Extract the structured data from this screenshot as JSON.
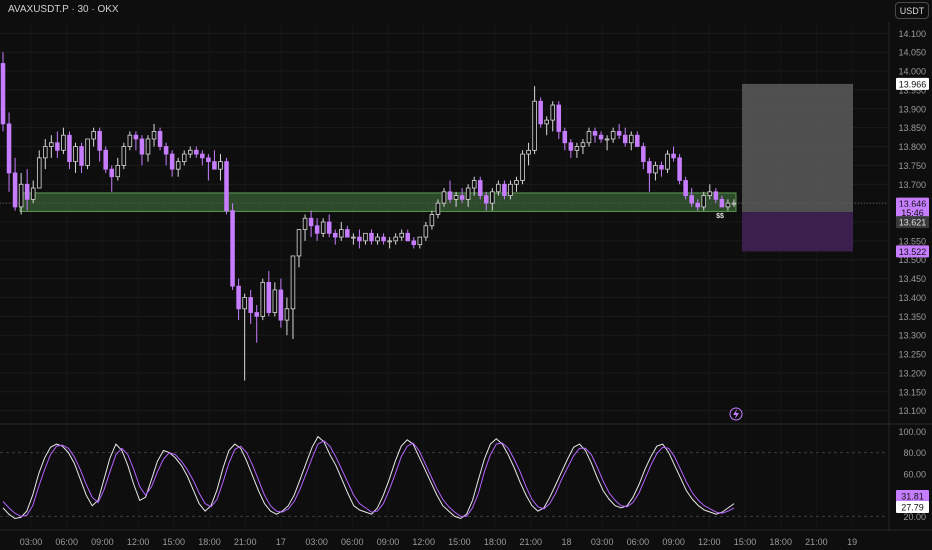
{
  "header": {
    "title": "AVAXUSDT.P · 30 · OKX",
    "currency_button": "USDT"
  },
  "colors": {
    "bull": "#0e0e0e",
    "bear": "#c77dff",
    "zone": "#2d4b2a",
    "zone_edge": "#5e9a52",
    "target": "#5a5a5a",
    "stop": "#3b1f4d",
    "stoch_k": "#e8e8e8",
    "stoch_d": "#b561ff"
  },
  "chart_data": [
    {
      "type": "candlestick",
      "title": "AVAXUSDT.P · 30 · OKX",
      "ylim": [
        13.07,
        14.13
      ],
      "y_ticks": [
        "14.100",
        "14.050",
        "14.000",
        "13.950",
        "13.900",
        "13.850",
        "13.800",
        "13.750",
        "13.700",
        "13.650",
        "13.600",
        "13.550",
        "13.500",
        "13.450",
        "13.400",
        "13.350",
        "13.300",
        "13.250",
        "13.200",
        "13.150",
        "13.100"
      ],
      "x_ticks": [
        "03:00",
        "06:00",
        "09:00",
        "12:00",
        "15:00",
        "18:00",
        "21:00",
        "17",
        "03:00",
        "06:00",
        "09:00",
        "12:00",
        "15:00",
        "18:00",
        "21:00",
        "18",
        "03:00",
        "06:00",
        "09:00",
        "12:00",
        "15:00",
        "18:00",
        "21:00",
        "19"
      ],
      "price_labels": [
        {
          "value": "13.966",
          "style": "white"
        },
        {
          "value": "13.646",
          "style": "purple"
        },
        {
          "value": "15:46",
          "style": "purple"
        },
        {
          "value": "13.621",
          "style": "gray"
        },
        {
          "value": "13.522",
          "style": "purple"
        }
      ],
      "annotations": [
        "$$"
      ],
      "demand_zone": {
        "low": 13.628,
        "high": 13.677
      },
      "position": {
        "entry": 13.626,
        "target": 13.966,
        "stop": 13.522
      },
      "candles": [
        [
          14.02,
          14.05,
          13.84,
          13.86
        ],
        [
          13.86,
          13.89,
          13.68,
          13.73
        ],
        [
          13.73,
          13.77,
          13.63,
          13.64
        ],
        [
          13.64,
          13.73,
          13.62,
          13.7
        ],
        [
          13.7,
          13.74,
          13.63,
          13.66
        ],
        [
          13.66,
          13.71,
          13.65,
          13.69
        ],
        [
          13.69,
          13.79,
          13.69,
          13.77
        ],
        [
          13.77,
          13.82,
          13.74,
          13.8
        ],
        [
          13.8,
          13.83,
          13.77,
          13.81
        ],
        [
          13.81,
          13.84,
          13.77,
          13.79
        ],
        [
          13.79,
          13.85,
          13.78,
          13.83
        ],
        [
          13.83,
          13.84,
          13.74,
          13.76
        ],
        [
          13.76,
          13.81,
          13.73,
          13.8
        ],
        [
          13.8,
          13.81,
          13.73,
          13.75
        ],
        [
          13.75,
          13.82,
          13.74,
          13.82
        ],
        [
          13.82,
          13.85,
          13.8,
          13.84
        ],
        [
          13.84,
          13.85,
          13.76,
          13.79
        ],
        [
          13.79,
          13.8,
          13.73,
          13.74
        ],
        [
          13.74,
          13.75,
          13.68,
          13.72
        ],
        [
          13.72,
          13.77,
          13.71,
          13.75
        ],
        [
          13.75,
          13.81,
          13.74,
          13.8
        ],
        [
          13.8,
          13.84,
          13.79,
          13.83
        ],
        [
          13.83,
          13.84,
          13.79,
          13.82
        ],
        [
          13.82,
          13.83,
          13.75,
          13.78
        ],
        [
          13.78,
          13.83,
          13.76,
          13.82
        ],
        [
          13.82,
          13.86,
          13.8,
          13.84
        ],
        [
          13.84,
          13.85,
          13.79,
          13.8
        ],
        [
          13.8,
          13.81,
          13.75,
          13.78
        ],
        [
          13.78,
          13.79,
          13.72,
          13.74
        ],
        [
          13.74,
          13.77,
          13.72,
          13.76
        ],
        [
          13.76,
          13.79,
          13.75,
          13.78
        ],
        [
          13.78,
          13.8,
          13.77,
          13.79
        ],
        [
          13.79,
          13.8,
          13.77,
          13.78
        ],
        [
          13.78,
          13.79,
          13.75,
          13.77
        ],
        [
          13.77,
          13.78,
          13.71,
          13.76
        ],
        [
          13.76,
          13.79,
          13.74,
          13.74
        ],
        [
          13.74,
          13.78,
          13.71,
          13.76
        ],
        [
          13.76,
          13.77,
          13.62,
          13.63
        ],
        [
          13.63,
          13.65,
          13.42,
          13.43
        ],
        [
          13.43,
          13.45,
          13.34,
          13.37
        ],
        [
          13.37,
          13.41,
          13.18,
          13.4
        ],
        [
          13.4,
          13.42,
          13.33,
          13.36
        ],
        [
          13.36,
          13.38,
          13.28,
          13.35
        ],
        [
          13.35,
          13.45,
          13.34,
          13.44
        ],
        [
          13.44,
          13.47,
          13.35,
          13.36
        ],
        [
          13.36,
          13.44,
          13.35,
          13.42
        ],
        [
          13.42,
          13.45,
          13.32,
          13.34
        ],
        [
          13.34,
          13.4,
          13.3,
          13.37
        ],
        [
          13.37,
          13.51,
          13.29,
          13.51
        ],
        [
          13.51,
          13.58,
          13.48,
          13.58
        ],
        [
          13.58,
          13.62,
          13.55,
          13.61
        ],
        [
          13.61,
          13.63,
          13.56,
          13.59
        ],
        [
          13.59,
          13.61,
          13.55,
          13.57
        ],
        [
          13.57,
          13.61,
          13.56,
          13.6
        ],
        [
          13.6,
          13.62,
          13.56,
          13.57
        ],
        [
          13.57,
          13.58,
          13.54,
          13.56
        ],
        [
          13.56,
          13.6,
          13.55,
          13.58
        ],
        [
          13.58,
          13.59,
          13.56,
          13.56
        ],
        [
          13.56,
          13.57,
          13.54,
          13.56
        ],
        [
          13.56,
          13.58,
          13.53,
          13.55
        ],
        [
          13.55,
          13.57,
          13.54,
          13.57
        ],
        [
          13.57,
          13.58,
          13.54,
          13.55
        ],
        [
          13.55,
          13.57,
          13.54,
          13.56
        ],
        [
          13.56,
          13.57,
          13.54,
          13.55
        ],
        [
          13.55,
          13.56,
          13.53,
          13.55
        ],
        [
          13.55,
          13.57,
          13.54,
          13.56
        ],
        [
          13.56,
          13.58,
          13.55,
          13.57
        ],
        [
          13.57,
          13.58,
          13.55,
          13.55
        ],
        [
          13.55,
          13.56,
          13.53,
          13.54
        ],
        [
          13.54,
          13.56,
          13.53,
          13.56
        ],
        [
          13.56,
          13.6,
          13.55,
          13.59
        ],
        [
          13.59,
          13.63,
          13.58,
          13.62
        ],
        [
          13.62,
          13.66,
          13.61,
          13.65
        ],
        [
          13.65,
          13.69,
          13.64,
          13.68
        ],
        [
          13.68,
          13.71,
          13.65,
          13.66
        ],
        [
          13.66,
          13.68,
          13.64,
          13.67
        ],
        [
          13.67,
          13.69,
          13.65,
          13.66
        ],
        [
          13.66,
          13.7,
          13.64,
          13.69
        ],
        [
          13.69,
          13.72,
          13.67,
          13.71
        ],
        [
          13.71,
          13.72,
          13.66,
          13.67
        ],
        [
          13.67,
          13.68,
          13.63,
          13.65
        ],
        [
          13.65,
          13.69,
          13.63,
          13.68
        ],
        [
          13.68,
          13.71,
          13.67,
          13.7
        ],
        [
          13.7,
          13.71,
          13.66,
          13.67
        ],
        [
          13.67,
          13.71,
          13.66,
          13.7
        ],
        [
          13.7,
          13.72,
          13.68,
          13.71
        ],
        [
          13.71,
          13.79,
          13.7,
          13.78
        ],
        [
          13.78,
          13.81,
          13.75,
          13.79
        ],
        [
          13.79,
          13.96,
          13.78,
          13.92
        ],
        [
          13.92,
          13.93,
          13.85,
          13.86
        ],
        [
          13.86,
          13.88,
          13.83,
          13.87
        ],
        [
          13.87,
          13.92,
          13.84,
          13.91
        ],
        [
          13.91,
          13.92,
          13.82,
          13.84
        ],
        [
          13.84,
          13.85,
          13.79,
          13.81
        ],
        [
          13.81,
          13.82,
          13.77,
          13.79
        ],
        [
          13.79,
          13.81,
          13.77,
          13.8
        ],
        [
          13.8,
          13.82,
          13.78,
          13.81
        ],
        [
          13.81,
          13.85,
          13.8,
          13.84
        ],
        [
          13.84,
          13.85,
          13.81,
          13.83
        ],
        [
          13.83,
          13.84,
          13.81,
          13.82
        ],
        [
          13.82,
          13.83,
          13.79,
          13.82
        ],
        [
          13.82,
          13.85,
          13.81,
          13.84
        ],
        [
          13.84,
          13.86,
          13.82,
          13.83
        ],
        [
          13.83,
          13.85,
          13.8,
          13.81
        ],
        [
          13.81,
          13.84,
          13.79,
          13.83
        ],
        [
          13.83,
          13.84,
          13.8,
          13.8
        ],
        [
          13.8,
          13.81,
          13.74,
          13.76
        ],
        [
          13.76,
          13.77,
          13.68,
          13.73
        ],
        [
          13.73,
          13.76,
          13.71,
          13.75
        ],
        [
          13.75,
          13.76,
          13.72,
          13.74
        ],
        [
          13.74,
          13.79,
          13.73,
          13.78
        ],
        [
          13.78,
          13.8,
          13.76,
          13.77
        ],
        [
          13.77,
          13.78,
          13.7,
          13.71
        ],
        [
          13.71,
          13.72,
          13.66,
          13.67
        ],
        [
          13.67,
          13.69,
          13.64,
          13.65
        ],
        [
          13.65,
          13.66,
          13.63,
          13.64
        ],
        [
          13.64,
          13.68,
          13.63,
          13.67
        ],
        [
          13.67,
          13.7,
          13.66,
          13.68
        ],
        [
          13.68,
          13.69,
          13.65,
          13.66
        ],
        [
          13.66,
          13.67,
          13.64,
          13.64
        ],
        [
          13.64,
          13.66,
          13.63,
          13.65
        ],
        [
          13.65,
          13.66,
          13.64,
          13.65
        ]
      ]
    },
    {
      "type": "line",
      "title": "",
      "ylim": [
        10,
        105
      ],
      "y_ticks": [
        "100.00",
        "80.00",
        "60.00",
        "40.00",
        "20.00"
      ],
      "guide_lines": [
        80,
        20
      ],
      "value_labels": [
        {
          "value": "31.81",
          "style": "purple"
        },
        {
          "value": "27.79",
          "style": "white"
        }
      ],
      "series": [
        {
          "values": [
            28,
            22,
            18,
            19,
            25,
            40,
            60,
            75,
            85,
            88,
            86,
            80,
            70,
            55,
            40,
            30,
            35,
            55,
            75,
            88,
            82,
            68,
            50,
            35,
            38,
            55,
            72,
            82,
            80,
            75,
            68,
            58,
            45,
            32,
            25,
            30,
            45,
            65,
            82,
            88,
            84,
            72,
            58,
            44,
            32,
            25,
            22,
            25,
            30,
            40,
            55,
            70,
            85,
            95,
            90,
            78,
            68,
            55,
            42,
            30,
            26,
            24,
            22,
            28,
            40,
            55,
            72,
            86,
            92,
            88,
            76,
            64,
            52,
            40,
            30,
            25,
            20,
            18,
            22,
            35,
            55,
            74,
            88,
            93,
            88,
            78,
            66,
            52,
            40,
            30,
            25,
            28,
            38,
            50,
            62,
            74,
            85,
            88,
            82,
            70,
            56,
            44,
            36,
            30,
            28,
            30,
            38,
            50,
            64,
            76,
            86,
            88,
            80,
            68,
            56,
            44,
            36,
            30,
            26,
            24,
            22,
            24,
            28,
            32
          ]
        },
        {
          "values": [
            34,
            28,
            23,
            20,
            21,
            30,
            48,
            64,
            78,
            86,
            87,
            84,
            76,
            64,
            50,
            38,
            33,
            45,
            62,
            78,
            84,
            78,
            64,
            48,
            40,
            48,
            62,
            74,
            80,
            78,
            72,
            64,
            54,
            42,
            32,
            29,
            36,
            52,
            70,
            83,
            86,
            80,
            68,
            54,
            40,
            30,
            25,
            24,
            27,
            34,
            46,
            60,
            75,
            88,
            91,
            86,
            76,
            64,
            52,
            40,
            32,
            28,
            24,
            25,
            32,
            45,
            60,
            76,
            86,
            89,
            82,
            70,
            58,
            46,
            36,
            29,
            24,
            20,
            20,
            28,
            42,
            62,
            78,
            88,
            89,
            84,
            74,
            62,
            48,
            36,
            29,
            27,
            32,
            42,
            55,
            66,
            77,
            84,
            84,
            78,
            66,
            53,
            42,
            35,
            30,
            29,
            33,
            42,
            55,
            68,
            79,
            85,
            84,
            76,
            64,
            52,
            42,
            35,
            30,
            27,
            24,
            23,
            25,
            28
          ]
        }
      ]
    }
  ]
}
